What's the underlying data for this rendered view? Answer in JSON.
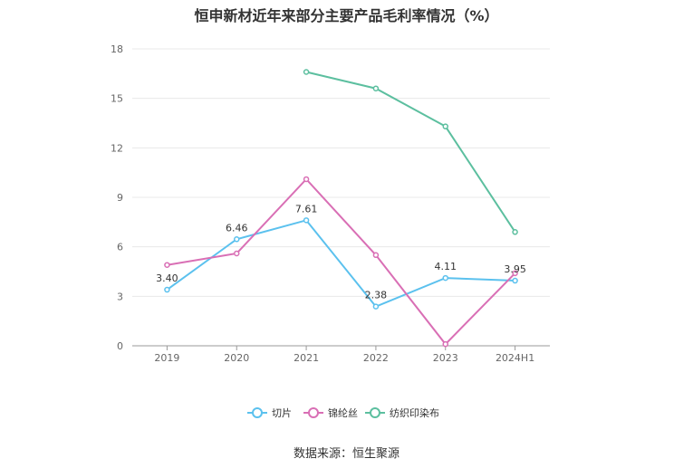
{
  "chart_data": {
    "type": "line",
    "title": "恒申新材近年来部分主要产品毛利率情况（%）",
    "categories": [
      "2019",
      "2020",
      "2021",
      "2022",
      "2023",
      "2024H1"
    ],
    "ylim": [
      0,
      18
    ],
    "yticks": [
      "0",
      "3",
      "6",
      "9",
      "12",
      "15",
      "18"
    ],
    "grid": true,
    "legend_position": "bottom",
    "series": [
      {
        "name": "切片",
        "color": "#5bc1ee",
        "values": [
          3.4,
          6.46,
          7.61,
          2.38,
          4.11,
          3.95
        ],
        "labels": [
          "3.40",
          "6.46",
          "7.61",
          "2.38",
          "4.11",
          "3.95"
        ]
      },
      {
        "name": "锦纶丝",
        "color": "#d96fb5",
        "values": [
          4.9,
          5.6,
          10.1,
          5.5,
          0.1,
          4.4
        ]
      },
      {
        "name": "纺织印染布",
        "color": "#5cbf9f",
        "values": [
          null,
          null,
          16.6,
          15.6,
          13.3,
          6.9
        ]
      }
    ]
  },
  "source": "数据来源：恒生聚源"
}
